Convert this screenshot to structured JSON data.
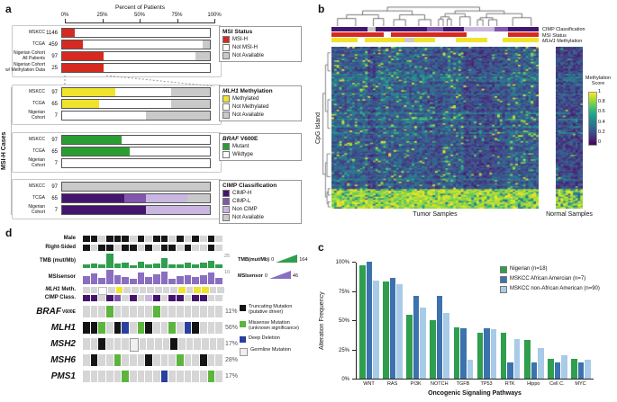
{
  "figure_labels": {
    "a": "a",
    "b": "b",
    "c": "c",
    "d": "d"
  },
  "palette": {
    "red": "#d62a20",
    "white": "#ffffff",
    "na": "#c9c9c9",
    "yellow": "#efe32c",
    "green": "#2a9d32",
    "cimp_h": "#45156d",
    "cimp_l": "#8157ac",
    "non_cimp": "#c9b6e1",
    "nigerian": "#2f9e4e",
    "aa": "#3c72ae",
    "nonaa": "#a8cbe8",
    "T": "#141414",
    "M": "#5db53e",
    "D": "#2b3f9f",
    "G": "#f0f0f0",
    "bg": "#d6d6d6",
    "tmb": "#2f9e4e",
    "msis": "#8a6fc0"
  },
  "chart_data": {
    "panel_a": {
      "type": "bar",
      "subtype": "stacked-horizontal-percent",
      "axis_title": "Percent of Patients",
      "ticks": [
        "0%",
        "25%",
        "50%",
        "75%",
        "100%"
      ],
      "side_label": "MSI-H Cases",
      "groups": [
        {
          "title_parts": [
            {
              "t": "MSI Status"
            }
          ],
          "legend": [
            [
              "MSI-H",
              "red"
            ],
            [
              "Not MSI-H",
              "white"
            ],
            [
              "Not Available",
              "na"
            ]
          ],
          "rows": [
            {
              "label": [
                "MSKCC"
              ],
              "n": "1146",
              "segs": [
                [
                  "red",
                  8.5
                ],
                [
                  "white",
                  91.5
                ]
              ]
            },
            {
              "label": [
                "TCGA"
              ],
              "n": "459",
              "segs": [
                [
                  "red",
                  14
                ],
                [
                  "white",
                  81
                ],
                [
                  "na",
                  5
                ]
              ]
            },
            {
              "label": [
                "Nigerian Cohort",
                "All Patients"
              ],
              "n": "97",
              "segs": [
                [
                  "red",
                  28
                ],
                [
                  "white",
                  62
                ],
                [
                  "na",
                  10
                ]
              ]
            },
            {
              "label": [
                "Nigerian Cohort",
                "w/ Methylation Data"
              ],
              "n": "25",
              "segs": [
                [
                  "red",
                  28
                ],
                [
                  "white",
                  72
                ]
              ]
            }
          ]
        },
        {
          "title_parts": [
            {
              "t": "MLH1",
              "i": 1
            },
            {
              "t": " Methylation"
            }
          ],
          "legend": [
            [
              "Methylated",
              "yellow"
            ],
            [
              "Not Methylated",
              "white"
            ],
            [
              "Not Available",
              "na"
            ]
          ],
          "rows": [
            {
              "label": [
                "MSKCC"
              ],
              "n": "97",
              "segs": [
                [
                  "yellow",
                  36
                ],
                [
                  "white",
                  38
                ],
                [
                  "na",
                  26
                ]
              ]
            },
            {
              "label": [
                "TCGA"
              ],
              "n": "65",
              "segs": [
                [
                  "yellow",
                  25
                ],
                [
                  "white",
                  49
                ],
                [
                  "na",
                  26
                ]
              ]
            },
            {
              "label": [
                "Nigerian",
                "Cohort"
              ],
              "n": "7",
              "segs": [
                [
                  "white",
                  57
                ],
                [
                  "na",
                  43
                ]
              ]
            }
          ]
        },
        {
          "title_parts": [
            {
              "t": "BRAF",
              "i": 1
            },
            {
              "t": " V600E"
            }
          ],
          "legend": [
            [
              "Mutant",
              "green"
            ],
            [
              "Wildtype",
              "white"
            ]
          ],
          "rows": [
            {
              "label": [
                "MSKCC"
              ],
              "n": "97",
              "segs": [
                [
                  "green",
                  40
                ],
                [
                  "white",
                  60
                ]
              ]
            },
            {
              "label": [
                "TCGA"
              ],
              "n": "65",
              "segs": [
                [
                  "green",
                  46
                ],
                [
                  "white",
                  54
                ]
              ]
            },
            {
              "label": [
                "Nigerian",
                "Cohort"
              ],
              "n": "7",
              "segs": [
                [
                  "white",
                  100
                ]
              ]
            }
          ]
        },
        {
          "title_parts": [
            {
              "t": "CIMP Classification"
            }
          ],
          "legend": [
            [
              "CIMP-H",
              "cimp_h"
            ],
            [
              "CIMP-L",
              "cimp_l"
            ],
            [
              "Non CIMP",
              "non_cimp"
            ],
            [
              "Not Available",
              "na"
            ]
          ],
          "rows": [
            {
              "label": [
                "MSKCC"
              ],
              "n": "97",
              "segs": [
                [
                  "na",
                  100
                ]
              ]
            },
            {
              "label": [
                "TCGA"
              ],
              "n": "65",
              "segs": [
                [
                  "cimp_h",
                  42
                ],
                [
                  "cimp_l",
                  15
                ],
                [
                  "non_cimp",
                  28
                ],
                [
                  "na",
                  15
                ]
              ]
            },
            {
              "label": [
                "Nigerian",
                "Cohort"
              ],
              "n": "7",
              "segs": [
                [
                  "cimp_h",
                  57
                ],
                [
                  "non_cimp",
                  43
                ]
              ]
            }
          ]
        }
      ]
    },
    "panel_b": {
      "type": "heatmap",
      "ylabel": "CpG Island",
      "xlabel_tumor": "Tumor Samples",
      "xlabel_normal": "Normal Samples",
      "legend_title": "Methylation Score",
      "legend_ticks": [
        "1",
        "0.8",
        "0.6",
        "0.4",
        "0.2",
        "0"
      ],
      "rows": 108,
      "tumor_cols": 80,
      "normal_cols": 11,
      "seed": 42,
      "colormap": [
        [
          68,
          1,
          84
        ],
        [
          72,
          40,
          120
        ],
        [
          62,
          74,
          137
        ],
        [
          49,
          104,
          142
        ],
        [
          38,
          130,
          142
        ],
        [
          31,
          158,
          137
        ],
        [
          53,
          183,
          121
        ],
        [
          109,
          205,
          89
        ],
        [
          180,
          222,
          44
        ],
        [
          253,
          231,
          37
        ]
      ],
      "tracks": [
        {
          "label_parts": [
            {
              "t": "CIMP Classification"
            }
          ],
          "runs": [
            [
              "cimp_h",
              14
            ],
            [
              "na",
              3
            ],
            [
              "cimp_h",
              20
            ],
            [
              "cimp_l",
              6
            ],
            [
              "cimp_h",
              8
            ],
            [
              "non_cimp",
              12
            ],
            [
              "cimp_l",
              5
            ],
            [
              "cimp_h",
              12
            ]
          ]
        },
        {
          "label_parts": [
            {
              "t": "MSI Status"
            }
          ],
          "runs": [
            [
              "red",
              20
            ],
            [
              "white",
              3
            ],
            [
              "red",
              29
            ],
            [
              "white",
              16
            ],
            [
              "red",
              12
            ]
          ]
        },
        {
          "label_parts": [
            {
              "t": "MLH1",
              "i": 1
            },
            {
              "t": " Methylation"
            }
          ],
          "runs": [
            [
              "yellow",
              10
            ],
            [
              "white",
              3
            ],
            [
              "yellow",
              15
            ],
            [
              "na",
              4
            ],
            [
              "yellow",
              8
            ],
            [
              "white",
              8
            ],
            [
              "yellow",
              12
            ],
            [
              "white",
              6
            ],
            [
              "yellow",
              14
            ]
          ]
        }
      ]
    },
    "panel_c": {
      "type": "bar",
      "xlabel": "Oncogenic Signaling Pathways",
      "ylabel": "Alteration Frequency",
      "ylim": [
        0,
        100
      ],
      "yticks": [
        "0%",
        "25%",
        "50%",
        "75%",
        "100%"
      ],
      "categories": [
        "WNT",
        "RAS",
        "PI3K",
        "NOTCH",
        "TGFB",
        "TP53",
        "RTK",
        "Hippo",
        "Cell C.",
        "MYC"
      ],
      "series": [
        {
          "name": "Nigerian (n=18)",
          "key": "nigerian",
          "values": [
            97,
            83,
            55,
            50,
            44,
            39,
            39,
            33,
            17,
            17
          ]
        },
        {
          "name": "MSKCC African Amercian (n=7)",
          "key": "aa",
          "values": [
            100,
            86,
            71,
            71,
            43,
            43,
            14,
            14,
            14,
            14
          ]
        },
        {
          "name": "MSKCC non-African American (n=90)",
          "key": "nonaa",
          "values": [
            84,
            81,
            61,
            56,
            16,
            42,
            34,
            26,
            20,
            16
          ]
        }
      ]
    },
    "panel_d": {
      "type": "oncoprint",
      "n_cols": 18,
      "rows_clinical": [
        {
          "label": "Male",
          "values": [
            1,
            1,
            0,
            1,
            1,
            1,
            0,
            1,
            0,
            1,
            1,
            0,
            1,
            0,
            1,
            0,
            1,
            0
          ]
        },
        {
          "label": "Right-Sided",
          "values": [
            1,
            0,
            1,
            1,
            0,
            1,
            1,
            0,
            1,
            0,
            1,
            1,
            0,
            1,
            0,
            0,
            1,
            0
          ]
        }
      ],
      "tmb": {
        "label": "TMB (mut/Mb)",
        "max": 164,
        "marker": "25",
        "values": [
          38,
          52,
          45,
          164,
          48,
          60,
          35,
          75,
          42,
          55,
          110,
          40,
          46,
          64,
          39,
          57,
          80,
          44
        ],
        "legend": {
          "label": "TMB(mut/Mb)",
          "min": "0",
          "max": "164"
        }
      },
      "msisensor": {
        "label": "MSIsensor",
        "max": 46,
        "marker": "10",
        "values": [
          26,
          34,
          20,
          46,
          29,
          24,
          16,
          38,
          22,
          31,
          41,
          18,
          27,
          30,
          23,
          28,
          36,
          19
        ],
        "legend": {
          "label": "MSIsensor",
          "min": "0",
          "max": "46"
        }
      },
      "meth_row": {
        "label_parts": [
          {
            "t": "MLH1",
            "i": 1
          },
          {
            "t": " Meth."
          }
        ],
        "values": [
          "na",
          "na",
          "not",
          "na",
          "meth",
          "na",
          "na",
          "na",
          "na",
          "na",
          "na",
          "na",
          "meth",
          "na",
          "meth",
          "meth",
          "na",
          "na"
        ]
      },
      "cimp_row": {
        "label": "CIMP Class.",
        "values": [
          "cimp_h",
          "cimp_h",
          "na",
          "cimp_h",
          "cimp_l",
          "na",
          "cimp_h",
          "na",
          "non_cimp",
          "cimp_h",
          "na",
          "cimp_h",
          "cimp_h",
          "na",
          "cimp_h",
          "cimp_h",
          "na",
          "na"
        ]
      },
      "genes": [
        {
          "name": "BRAF",
          "suffix": "V600E",
          "pct": "11%",
          "cells": [
            "0",
            "0",
            "0",
            "M",
            "0",
            "0",
            "0",
            "0",
            "0",
            "M",
            "0",
            "0",
            "0",
            "0",
            "0",
            "0",
            "0",
            "0"
          ]
        },
        {
          "name": "MLH1",
          "pct": "56%",
          "cells": [
            "T",
            "T",
            "M",
            "0",
            "T",
            "D",
            "0",
            "M",
            "T",
            "0",
            "0",
            "M",
            "0",
            "D",
            "T",
            "0",
            "0",
            "0"
          ]
        },
        {
          "name": "MSH2",
          "pct": "17%",
          "cells": [
            "0",
            "0",
            "T",
            "0",
            "0",
            "0",
            "G",
            "0",
            "0",
            "0",
            "0",
            "T",
            "0",
            "0",
            "0",
            "0",
            "0",
            "0"
          ]
        },
        {
          "name": "MSH6",
          "pct": "28%",
          "cells": [
            "0",
            "T",
            "0",
            "0",
            "M",
            "0",
            "0",
            "0",
            "T",
            "0",
            "0",
            "0",
            "M",
            "0",
            "0",
            "T",
            "0",
            "0"
          ]
        },
        {
          "name": "PMS1",
          "pct": "17%",
          "cells": [
            "0",
            "0",
            "0",
            "0",
            "0",
            "M",
            "0",
            "0",
            "0",
            "0",
            "D",
            "0",
            "0",
            "0",
            "0",
            "0",
            "M",
            "0"
          ]
        }
      ],
      "mutation_legend": [
        {
          "key": "T",
          "lines": [
            "Truncating Mutation",
            "(putative driver)"
          ]
        },
        {
          "key": "M",
          "lines": [
            "Missense Mutation",
            "(unknown significance)"
          ]
        },
        {
          "key": "D",
          "lines": [
            "Deep Deletion"
          ]
        },
        {
          "key": "G",
          "lines": [
            "Germline Mutation"
          ]
        }
      ]
    }
  }
}
